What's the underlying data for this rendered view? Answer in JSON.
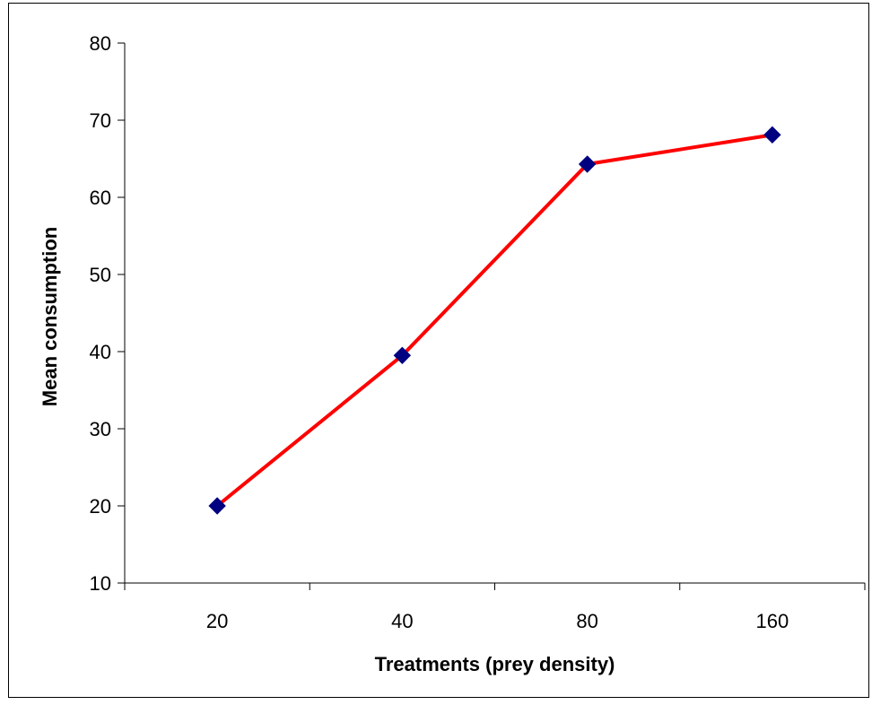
{
  "chart_data": {
    "type": "line",
    "title": "",
    "xlabel": "Treatments (prey density)",
    "ylabel": "Mean consumption",
    "categories": [
      "20",
      "40",
      "80",
      "160"
    ],
    "series": [
      {
        "values": [
          20,
          39.5,
          64.3,
          68.1
        ]
      }
    ],
    "ylim": [
      10,
      80
    ],
    "yticks": [
      "10",
      "20",
      "30",
      "40",
      "50",
      "60",
      "70",
      "80"
    ],
    "grid": false,
    "legend": "none",
    "colors": {
      "line": "#ff0000",
      "marker": "#000080",
      "axis": "#000000"
    },
    "marker_shape": "diamond"
  }
}
